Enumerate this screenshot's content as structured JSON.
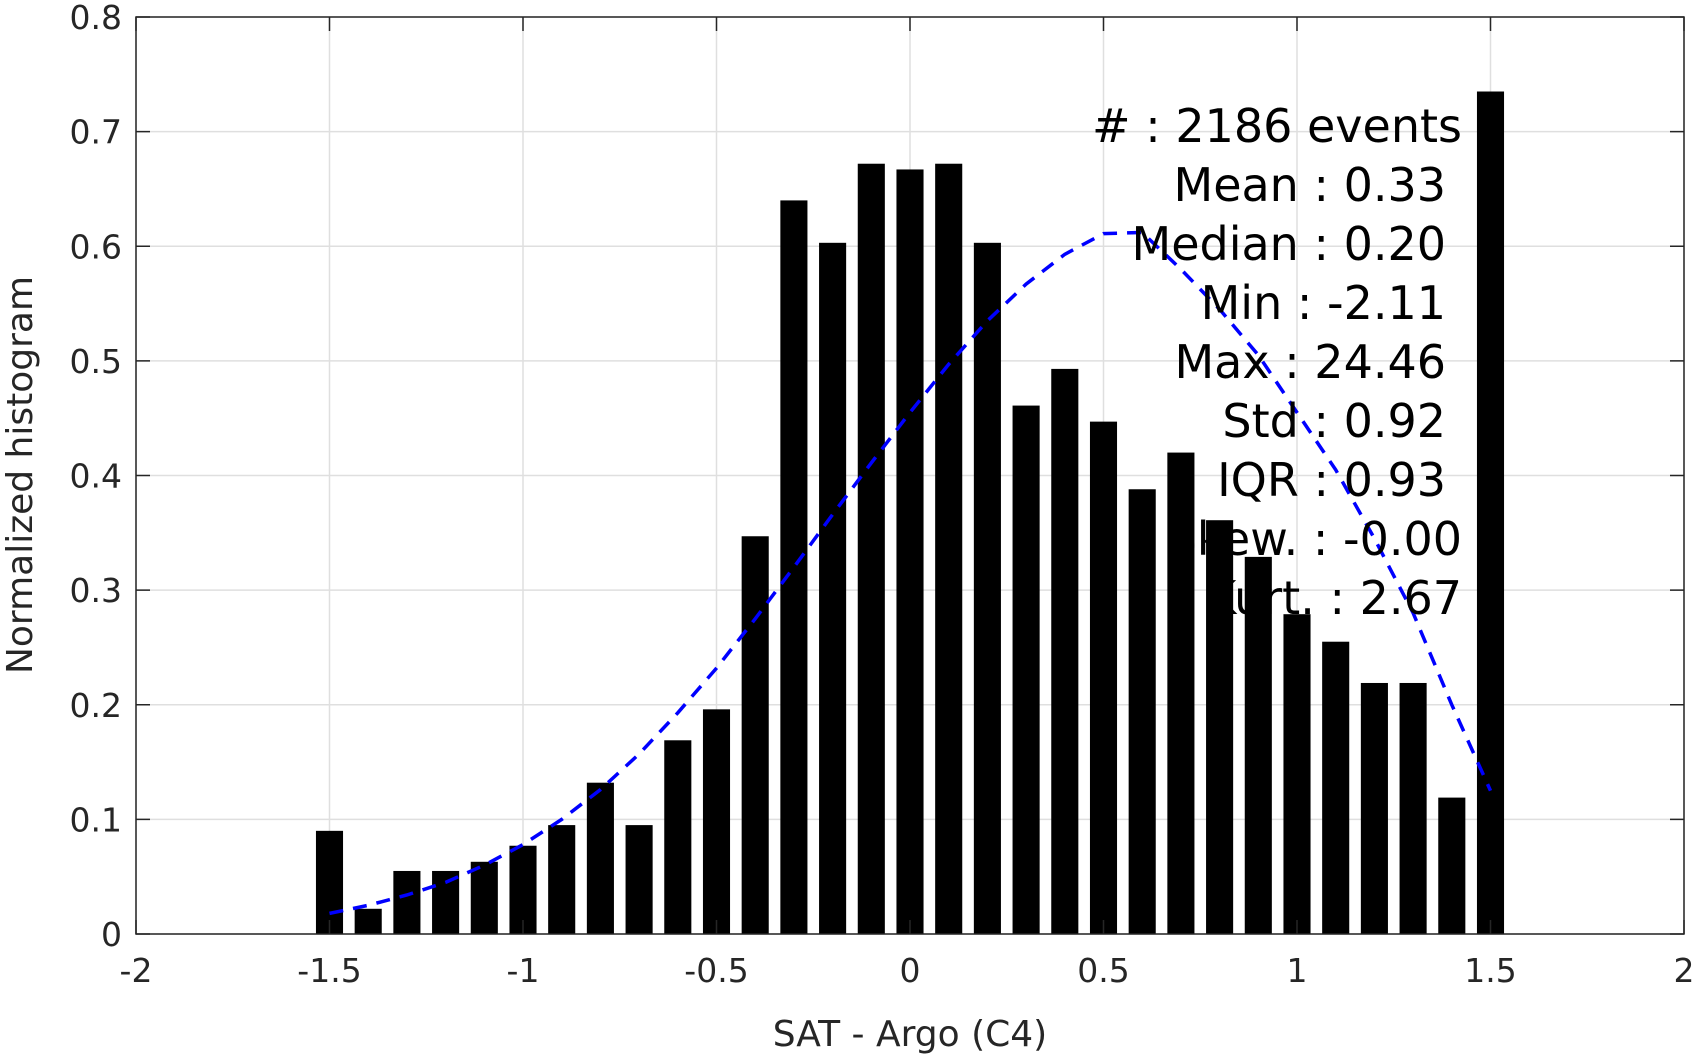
{
  "chart_data": {
    "type": "bar",
    "xlabel": "SAT - Argo (C4)",
    "ylabel": "Normalized histogram",
    "xlim": [
      -2,
      2
    ],
    "ylim": [
      0,
      0.8
    ],
    "xticks": [
      -2,
      -1.5,
      -1,
      -0.5,
      0,
      0.5,
      1,
      1.5,
      2
    ],
    "xtick_labels": [
      "-2",
      "-1.5",
      "-1",
      "-0.5",
      "0",
      "0.5",
      "1",
      "1.5",
      "2"
    ],
    "yticks": [
      0,
      0.1,
      0.2,
      0.3,
      0.4,
      0.5,
      0.6,
      0.7,
      0.8
    ],
    "ytick_labels": [
      "0",
      "0.1",
      "0.2",
      "0.3",
      "0.4",
      "0.5",
      "0.6",
      "0.7",
      "0.8"
    ],
    "grid": true,
    "bar_width": 0.07,
    "bar_color": "#000000",
    "bars": {
      "x": [
        -1.5,
        -1.4,
        -1.3,
        -1.2,
        -1.1,
        -1.0,
        -0.9,
        -0.8,
        -0.7,
        -0.6,
        -0.5,
        -0.4,
        -0.3,
        -0.2,
        -0.1,
        0.0,
        0.1,
        0.2,
        0.3,
        0.4,
        0.5,
        0.6,
        0.7,
        0.8,
        0.9,
        1.0,
        1.1,
        1.2,
        1.3,
        1.4,
        1.5
      ],
      "values": [
        0.09,
        0.022,
        0.055,
        0.055,
        0.063,
        0.077,
        0.095,
        0.132,
        0.095,
        0.169,
        0.196,
        0.347,
        0.64,
        0.603,
        0.672,
        0.667,
        0.672,
        0.603,
        0.461,
        0.493,
        0.447,
        0.388,
        0.42,
        0.361,
        0.329,
        0.279,
        0.255,
        0.219,
        0.219,
        0.119,
        0.735
      ]
    },
    "fit_curve": {
      "style": "dashed",
      "color": "#0000ff",
      "x": [
        -1.5,
        -1.4,
        -1.3,
        -1.2,
        -1.1,
        -1.0,
        -0.9,
        -0.8,
        -0.7,
        -0.6,
        -0.5,
        -0.4,
        -0.3,
        -0.2,
        -0.1,
        0.0,
        0.1,
        0.2,
        0.3,
        0.4,
        0.5,
        0.6,
        0.7,
        0.8,
        0.9,
        1.0,
        1.1,
        1.2,
        1.3,
        1.4,
        1.5
      ],
      "y": [
        0.018,
        0.025,
        0.034,
        0.045,
        0.06,
        0.078,
        0.1,
        0.126,
        0.157,
        0.193,
        0.232,
        0.275,
        0.32,
        0.366,
        0.411,
        0.455,
        0.497,
        0.535,
        0.567,
        0.593,
        0.611,
        0.612,
        0.58,
        0.545,
        0.505,
        0.455,
        0.405,
        0.345,
        0.28,
        0.2,
        0.125
      ]
    },
    "annotations": [
      "#  : 2186 events",
      "Mean : 0.33",
      "Median : 0.20",
      "Min : -2.11",
      "Max : 24.46",
      "Std : 0.92",
      "IQR : 0.93",
      "Skew. : -0.00",
      "Kurt. : 2.67"
    ]
  }
}
